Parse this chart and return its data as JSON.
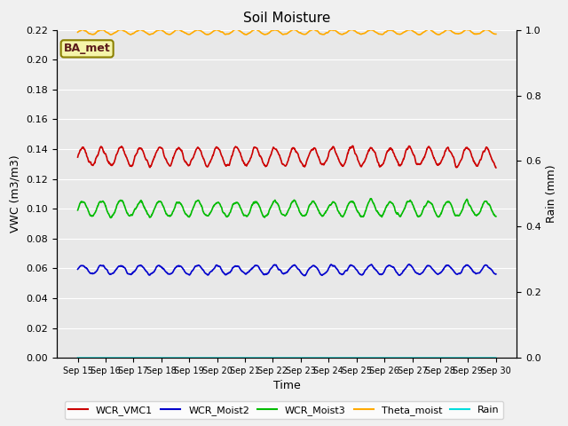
{
  "title": "Soil Moisture",
  "xlabel": "Time",
  "ylabel_left": "VWC (m3/m3)",
  "ylabel_right": "Rain (mm)",
  "plot_bg_color": "#e8e8e8",
  "fig_bg_color": "#f0f0f0",
  "x_labels": [
    "Sep 15",
    "Sep 16",
    "Sep 17",
    "Sep 18",
    "Sep 19",
    "Sep 20",
    "Sep 21",
    "Sep 22",
    "Sep 23",
    "Sep 24",
    "Sep 25",
    "Sep 26",
    "Sep 27",
    "Sep 28",
    "Sep 29",
    "Sep 30"
  ],
  "ylim_left": [
    0.0,
    0.22
  ],
  "ylim_right": [
    0.0,
    1.0
  ],
  "annotation_text": "BA_met",
  "series": {
    "WCR_VMC1": {
      "color": "#cc0000",
      "base": 0.135,
      "amp": 0.006,
      "freq": 1.45,
      "seed": 1
    },
    "WCR_Moist2": {
      "color": "#0000cc",
      "base": 0.059,
      "amp": 0.003,
      "freq": 1.45,
      "seed": 2
    },
    "WCR_Moist3": {
      "color": "#00bb00",
      "base": 0.1,
      "amp": 0.005,
      "freq": 1.45,
      "seed": 3
    },
    "Theta_moist": {
      "color": "#ffaa00",
      "base": 0.2185,
      "amp": 0.0015,
      "freq": 1.45,
      "seed": 4
    },
    "Rain": {
      "color": "#00dddd",
      "base": 0.0,
      "amp": 0.0,
      "freq": 0.0,
      "seed": 5
    }
  },
  "n_points": 1500,
  "yticks_left": [
    0.0,
    0.02,
    0.04,
    0.06,
    0.08,
    0.1,
    0.12,
    0.14,
    0.16,
    0.18,
    0.2,
    0.22
  ],
  "yticks_right": [
    0.0,
    0.2,
    0.4,
    0.6,
    0.8,
    1.0
  ],
  "legend_items": [
    {
      "label": "WCR_VMC1",
      "color": "#cc0000"
    },
    {
      "label": "WCR_Moist2",
      "color": "#0000cc"
    },
    {
      "label": "WCR_Moist3",
      "color": "#00bb00"
    },
    {
      "label": "Theta_moist",
      "color": "#ffaa00"
    },
    {
      "label": "Rain",
      "color": "#00dddd"
    }
  ],
  "title_fontsize": 11,
  "label_fontsize": 9,
  "tick_fontsize": 8,
  "legend_fontsize": 8,
  "line_width": 1.2,
  "grid_color": "white",
  "grid_lw": 0.8
}
